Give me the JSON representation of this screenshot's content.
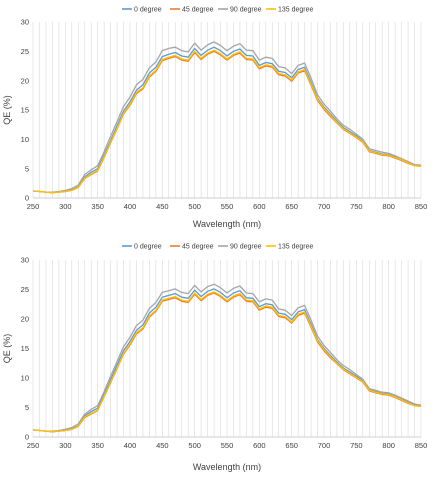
{
  "chart_data": [
    {
      "type": "line",
      "xlabel": "Wavelength (nm)",
      "ylabel": "QE (%)",
      "xlim": [
        250,
        850
      ],
      "ylim": [
        0,
        30
      ],
      "xticks": [
        250,
        300,
        350,
        400,
        450,
        500,
        550,
        600,
        650,
        700,
        750,
        800,
        850
      ],
      "yticks": [
        0,
        5,
        10,
        15,
        20,
        25,
        30
      ],
      "grid": "vertical",
      "legend": "top-center",
      "series": [
        {
          "name": "0 degree",
          "color": "#5b9bd5",
          "x": [
            250,
            260,
            270,
            280,
            290,
            300,
            310,
            320,
            330,
            340,
            350,
            360,
            370,
            380,
            390,
            400,
            410,
            420,
            430,
            440,
            450,
            460,
            470,
            480,
            490,
            500,
            510,
            520,
            530,
            540,
            550,
            560,
            570,
            580,
            590,
            600,
            610,
            620,
            630,
            640,
            650,
            660,
            670,
            680,
            690,
            700,
            710,
            720,
            730,
            740,
            750,
            760,
            770,
            780,
            790,
            800,
            810,
            820,
            830,
            840,
            850
          ],
          "values": [
            1.2,
            1.1,
            1.0,
            0.9,
            1.0,
            1.1,
            1.4,
            1.9,
            3.6,
            4.4,
            5.0,
            7.3,
            9.8,
            12.3,
            14.8,
            16.4,
            18.4,
            19.3,
            21.3,
            22.3,
            24.1,
            24.5,
            24.8,
            24.2,
            24.0,
            25.5,
            24.3,
            25.2,
            25.7,
            25.1,
            24.2,
            25.0,
            25.4,
            24.3,
            24.2,
            22.6,
            23.1,
            22.9,
            21.6,
            21.4,
            20.5,
            21.9,
            22.3,
            19.7,
            17.0,
            15.5,
            14.3,
            13.1,
            12.0,
            11.3,
            10.6,
            9.7,
            8.1,
            7.8,
            7.5,
            7.4,
            7.0,
            6.6,
            6.1,
            5.6,
            5.5
          ]
        },
        {
          "name": "45 degree",
          "color": "#ed7d31",
          "x": [
            250,
            260,
            270,
            280,
            290,
            300,
            310,
            320,
            330,
            340,
            350,
            360,
            370,
            380,
            390,
            400,
            410,
            420,
            430,
            440,
            450,
            460,
            470,
            480,
            490,
            500,
            510,
            520,
            530,
            540,
            550,
            560,
            570,
            580,
            590,
            600,
            610,
            620,
            630,
            640,
            650,
            660,
            670,
            680,
            690,
            700,
            710,
            720,
            730,
            740,
            750,
            760,
            770,
            780,
            790,
            800,
            810,
            820,
            830,
            840,
            850
          ],
          "values": [
            1.2,
            1.1,
            1.0,
            0.9,
            1.0,
            1.1,
            1.3,
            1.8,
            3.3,
            4.0,
            4.6,
            6.9,
            9.4,
            11.8,
            14.3,
            15.8,
            17.8,
            18.6,
            20.6,
            21.6,
            23.4,
            23.8,
            24.1,
            23.5,
            23.3,
            24.8,
            23.6,
            24.5,
            25.0,
            24.4,
            23.5,
            24.3,
            24.7,
            23.6,
            23.5,
            22.0,
            22.5,
            22.3,
            21.0,
            20.8,
            19.9,
            21.3,
            21.7,
            19.2,
            16.6,
            15.1,
            13.9,
            12.8,
            11.7,
            11.0,
            10.3,
            9.5,
            7.9,
            7.6,
            7.3,
            7.2,
            6.8,
            6.4,
            5.9,
            5.5,
            5.4
          ]
        },
        {
          "name": "90 degree",
          "color": "#a5a5a5",
          "x": [
            250,
            260,
            270,
            280,
            290,
            300,
            310,
            320,
            330,
            340,
            350,
            360,
            370,
            380,
            390,
            400,
            410,
            420,
            430,
            440,
            450,
            460,
            470,
            480,
            490,
            500,
            510,
            520,
            530,
            540,
            550,
            560,
            570,
            580,
            590,
            600,
            610,
            620,
            630,
            640,
            650,
            660,
            670,
            680,
            690,
            700,
            710,
            720,
            730,
            740,
            750,
            760,
            770,
            780,
            790,
            800,
            810,
            820,
            830,
            840,
            850
          ],
          "values": [
            1.2,
            1.1,
            1.0,
            1.0,
            1.1,
            1.3,
            1.6,
            2.2,
            4.0,
            4.8,
            5.5,
            7.9,
            10.5,
            13.0,
            15.6,
            17.2,
            19.3,
            20.2,
            22.2,
            23.2,
            25.1,
            25.5,
            25.7,
            25.1,
            24.9,
            26.4,
            25.2,
            26.1,
            26.6,
            26.0,
            25.1,
            25.9,
            26.3,
            25.2,
            25.1,
            23.5,
            24.0,
            23.8,
            22.4,
            22.2,
            21.2,
            22.6,
            23.0,
            20.4,
            17.6,
            16.0,
            14.8,
            13.5,
            12.4,
            11.7,
            10.9,
            10.0,
            8.4,
            8.1,
            7.8,
            7.6,
            7.2,
            6.7,
            6.2,
            5.7,
            5.6
          ]
        },
        {
          "name": "135 degree",
          "color": "#ffc000",
          "x": [
            250,
            260,
            270,
            280,
            290,
            300,
            310,
            320,
            330,
            340,
            350,
            360,
            370,
            380,
            390,
            400,
            410,
            420,
            430,
            440,
            450,
            460,
            470,
            480,
            490,
            500,
            510,
            520,
            530,
            540,
            550,
            560,
            570,
            580,
            590,
            600,
            610,
            620,
            630,
            640,
            650,
            660,
            670,
            680,
            690,
            700,
            710,
            720,
            730,
            740,
            750,
            760,
            770,
            780,
            790,
            800,
            810,
            820,
            830,
            840,
            850
          ],
          "values": [
            1.2,
            1.1,
            1.0,
            0.9,
            1.0,
            1.1,
            1.3,
            1.8,
            3.4,
            4.1,
            4.7,
            7.0,
            9.5,
            11.9,
            14.4,
            16.0,
            18.0,
            18.8,
            20.8,
            21.8,
            23.6,
            24.0,
            24.3,
            23.7,
            23.5,
            25.0,
            23.8,
            24.7,
            25.2,
            24.6,
            23.7,
            24.5,
            24.9,
            23.8,
            23.7,
            22.2,
            22.7,
            22.5,
            21.2,
            21.0,
            20.1,
            21.5,
            21.9,
            19.4,
            16.8,
            15.3,
            14.1,
            12.9,
            11.8,
            11.1,
            10.4,
            9.6,
            8.0,
            7.7,
            7.4,
            7.3,
            6.9,
            6.5,
            6.0,
            5.5,
            5.4
          ]
        }
      ]
    },
    {
      "type": "line",
      "xlabel": "Wavelength (nm)",
      "ylabel": "QE (%)",
      "xlim": [
        250,
        850
      ],
      "ylim": [
        0,
        30
      ],
      "xticks": [
        250,
        300,
        350,
        400,
        450,
        500,
        550,
        600,
        650,
        700,
        750,
        800,
        850
      ],
      "yticks": [
        0,
        5,
        10,
        15,
        20,
        25,
        30
      ],
      "grid": "vertical",
      "legend": "top-center",
      "series": [
        {
          "name": "0 degree",
          "color": "#5b9bd5",
          "x": [
            250,
            260,
            270,
            280,
            290,
            300,
            310,
            320,
            330,
            340,
            350,
            360,
            370,
            380,
            390,
            400,
            410,
            420,
            430,
            440,
            450,
            460,
            470,
            480,
            490,
            500,
            510,
            520,
            530,
            540,
            550,
            560,
            570,
            580,
            590,
            600,
            610,
            620,
            630,
            640,
            650,
            660,
            670,
            680,
            690,
            700,
            710,
            720,
            730,
            740,
            750,
            760,
            770,
            780,
            790,
            800,
            810,
            820,
            830,
            840,
            850
          ],
          "values": [
            1.2,
            1.1,
            1.0,
            0.9,
            1.0,
            1.1,
            1.4,
            1.9,
            3.6,
            4.3,
            4.9,
            7.2,
            9.7,
            12.2,
            14.6,
            16.2,
            18.1,
            19.0,
            21.0,
            22.0,
            23.7,
            24.0,
            24.3,
            23.7,
            23.5,
            24.9,
            23.8,
            24.7,
            25.1,
            24.5,
            23.6,
            24.4,
            24.8,
            23.6,
            23.5,
            22.1,
            22.6,
            22.4,
            21.0,
            20.8,
            19.9,
            21.2,
            21.6,
            19.1,
            16.5,
            15.0,
            13.8,
            12.7,
            11.7,
            11.0,
            10.3,
            9.5,
            8.0,
            7.7,
            7.4,
            7.3,
            6.9,
            6.4,
            5.9,
            5.4,
            5.3
          ]
        },
        {
          "name": "45 degree",
          "color": "#ed7d31",
          "x": [
            250,
            260,
            270,
            280,
            290,
            300,
            310,
            320,
            330,
            340,
            350,
            360,
            370,
            380,
            390,
            400,
            410,
            420,
            430,
            440,
            450,
            460,
            470,
            480,
            490,
            500,
            510,
            520,
            530,
            540,
            550,
            560,
            570,
            580,
            590,
            600,
            610,
            620,
            630,
            640,
            650,
            660,
            670,
            680,
            690,
            700,
            710,
            720,
            730,
            740,
            750,
            760,
            770,
            780,
            790,
            800,
            810,
            820,
            830,
            840,
            850
          ],
          "values": [
            1.2,
            1.1,
            1.0,
            0.9,
            1.0,
            1.1,
            1.3,
            1.8,
            3.3,
            3.9,
            4.5,
            6.8,
            9.2,
            11.6,
            14.0,
            15.6,
            17.5,
            18.3,
            20.3,
            21.3,
            23.0,
            23.3,
            23.6,
            23.0,
            22.8,
            24.2,
            23.1,
            24.0,
            24.4,
            23.8,
            22.9,
            23.7,
            24.1,
            23.0,
            22.9,
            21.5,
            22.0,
            21.8,
            20.4,
            20.2,
            19.3,
            20.6,
            21.0,
            18.6,
            16.1,
            14.6,
            13.4,
            12.4,
            11.4,
            10.7,
            10.0,
            9.3,
            7.8,
            7.5,
            7.2,
            7.1,
            6.7,
            6.2,
            5.7,
            5.3,
            5.2
          ]
        },
        {
          "name": "90 degree",
          "color": "#a5a5a5",
          "x": [
            250,
            260,
            270,
            280,
            290,
            300,
            310,
            320,
            330,
            340,
            350,
            360,
            370,
            380,
            390,
            400,
            410,
            420,
            430,
            440,
            450,
            460,
            470,
            480,
            490,
            500,
            510,
            520,
            530,
            540,
            550,
            560,
            570,
            580,
            590,
            600,
            610,
            620,
            630,
            640,
            650,
            660,
            670,
            680,
            690,
            700,
            710,
            720,
            730,
            740,
            750,
            760,
            770,
            780,
            790,
            800,
            810,
            820,
            830,
            840,
            850
          ],
          "values": [
            1.2,
            1.1,
            1.0,
            1.0,
            1.1,
            1.3,
            1.6,
            2.2,
            3.9,
            4.7,
            5.3,
            7.7,
            10.3,
            12.8,
            15.3,
            16.9,
            18.9,
            19.8,
            21.8,
            22.8,
            24.5,
            24.8,
            25.1,
            24.5,
            24.3,
            25.7,
            24.6,
            25.5,
            25.9,
            25.3,
            24.4,
            25.2,
            25.6,
            24.4,
            24.3,
            22.9,
            23.4,
            23.2,
            21.7,
            21.5,
            20.6,
            21.9,
            22.3,
            19.8,
            17.1,
            15.5,
            14.3,
            13.1,
            12.1,
            11.4,
            10.6,
            9.8,
            8.2,
            7.9,
            7.6,
            7.5,
            7.1,
            6.6,
            6.1,
            5.6,
            5.4
          ]
        },
        {
          "name": "135 degree",
          "color": "#ffc000",
          "x": [
            250,
            260,
            270,
            280,
            290,
            300,
            310,
            320,
            330,
            340,
            350,
            360,
            370,
            380,
            390,
            400,
            410,
            420,
            430,
            440,
            450,
            460,
            470,
            480,
            490,
            500,
            510,
            520,
            530,
            540,
            550,
            560,
            570,
            580,
            590,
            600,
            610,
            620,
            630,
            640,
            650,
            660,
            670,
            680,
            690,
            700,
            710,
            720,
            730,
            740,
            750,
            760,
            770,
            780,
            790,
            800,
            810,
            820,
            830,
            840,
            850
          ],
          "values": [
            1.2,
            1.1,
            1.0,
            0.9,
            1.0,
            1.1,
            1.3,
            1.8,
            3.4,
            4.0,
            4.6,
            6.9,
            9.3,
            11.7,
            14.1,
            15.8,
            17.7,
            18.5,
            20.5,
            21.5,
            23.2,
            23.5,
            23.8,
            23.2,
            23.0,
            24.4,
            23.3,
            24.2,
            24.6,
            24.0,
            23.1,
            23.9,
            24.3,
            23.2,
            23.1,
            21.7,
            22.2,
            22.0,
            20.6,
            20.4,
            19.5,
            20.8,
            21.2,
            18.8,
            16.3,
            14.8,
            13.6,
            12.5,
            11.5,
            10.8,
            10.1,
            9.4,
            7.9,
            7.6,
            7.3,
            7.2,
            6.8,
            6.3,
            5.8,
            5.3,
            5.2
          ]
        }
      ]
    }
  ]
}
